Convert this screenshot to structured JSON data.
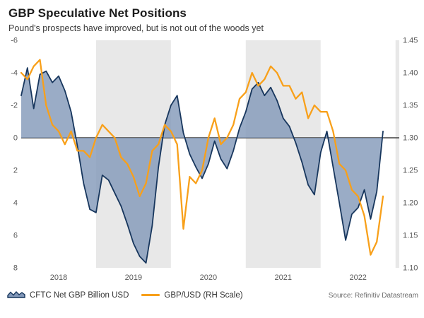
{
  "source": "Source: Refinitiv Datastream",
  "colors": {
    "navy": "#17365d",
    "navy_fill": "#8197b8",
    "orange": "#f8a01a",
    "band_gray": "#e8e8e8",
    "zero_line": "#3f3f3f",
    "axis_text": "#595959"
  },
  "chart_data": {
    "type": "line",
    "title": "GBP Speculative Net Positions",
    "subtitle": "Pound's prospects have improved, but is not out of the woods yet",
    "legend_position": "bottom",
    "x_start": 2018.0,
    "x_step": 0.0833333,
    "x_min": 2018.0,
    "x_max": 2023.05,
    "x_tick_labels": [
      "2018",
      "2019",
      "2020",
      "2021",
      "2022"
    ],
    "gray_band_years": [
      2019,
      2021,
      2023
    ],
    "left_axis": {
      "label": "CFTC Net GBP Billion USD",
      "min": -6,
      "max": 8,
      "min_at_top": true,
      "tick_values": [
        -6,
        -4,
        -2,
        0,
        2,
        4,
        6,
        8
      ],
      "tick_labels": [
        "-6",
        "-4",
        "-2",
        "0",
        "2",
        "4",
        "6",
        "8"
      ]
    },
    "right_axis": {
      "label": "GBP/USD (RH Scale)",
      "min": 1.1,
      "max": 1.45,
      "tick_values": [
        1.45,
        1.4,
        1.35,
        1.3,
        1.25,
        1.2,
        1.15,
        1.1
      ],
      "tick_labels": [
        "1.45",
        "1.40",
        "1.35",
        "1.30",
        "1.25",
        "1.20",
        "1.15",
        "1.10"
      ]
    },
    "series": [
      {
        "name": "CFTC Net GBP Billion USD",
        "axis": "left",
        "color_key": "navy",
        "area": true,
        "values": [
          -2.6,
          -4.3,
          -1.8,
          -3.9,
          -4.1,
          -3.4,
          -3.8,
          -2.9,
          -1.6,
          0.5,
          2.8,
          4.4,
          4.6,
          2.3,
          2.6,
          3.4,
          4.2,
          5.3,
          6.5,
          7.3,
          7.7,
          5.4,
          1.8,
          -0.8,
          -2.0,
          -2.6,
          -0.3,
          1.0,
          1.8,
          2.5,
          1.6,
          0.2,
          1.3,
          1.9,
          0.8,
          -0.6,
          -1.6,
          -3.0,
          -3.4,
          -2.6,
          -3.1,
          -2.3,
          -1.2,
          -0.7,
          0.3,
          1.5,
          2.9,
          3.5,
          0.9,
          -0.4,
          1.8,
          4.0,
          6.3,
          4.7,
          4.3,
          3.2,
          5.0,
          3.3,
          -0.4
        ]
      },
      {
        "name": "GBP/USD (RH Scale)",
        "axis": "right",
        "color_key": "orange",
        "area": false,
        "values": [
          1.4,
          1.39,
          1.41,
          1.42,
          1.35,
          1.32,
          1.31,
          1.29,
          1.31,
          1.28,
          1.28,
          1.27,
          1.3,
          1.32,
          1.31,
          1.3,
          1.27,
          1.26,
          1.24,
          1.21,
          1.23,
          1.28,
          1.29,
          1.32,
          1.31,
          1.29,
          1.16,
          1.24,
          1.23,
          1.25,
          1.3,
          1.33,
          1.29,
          1.3,
          1.32,
          1.36,
          1.37,
          1.4,
          1.38,
          1.39,
          1.41,
          1.4,
          1.38,
          1.38,
          1.36,
          1.37,
          1.33,
          1.35,
          1.34,
          1.34,
          1.31,
          1.26,
          1.25,
          1.22,
          1.21,
          1.18,
          1.12,
          1.14,
          1.21
        ]
      }
    ]
  }
}
